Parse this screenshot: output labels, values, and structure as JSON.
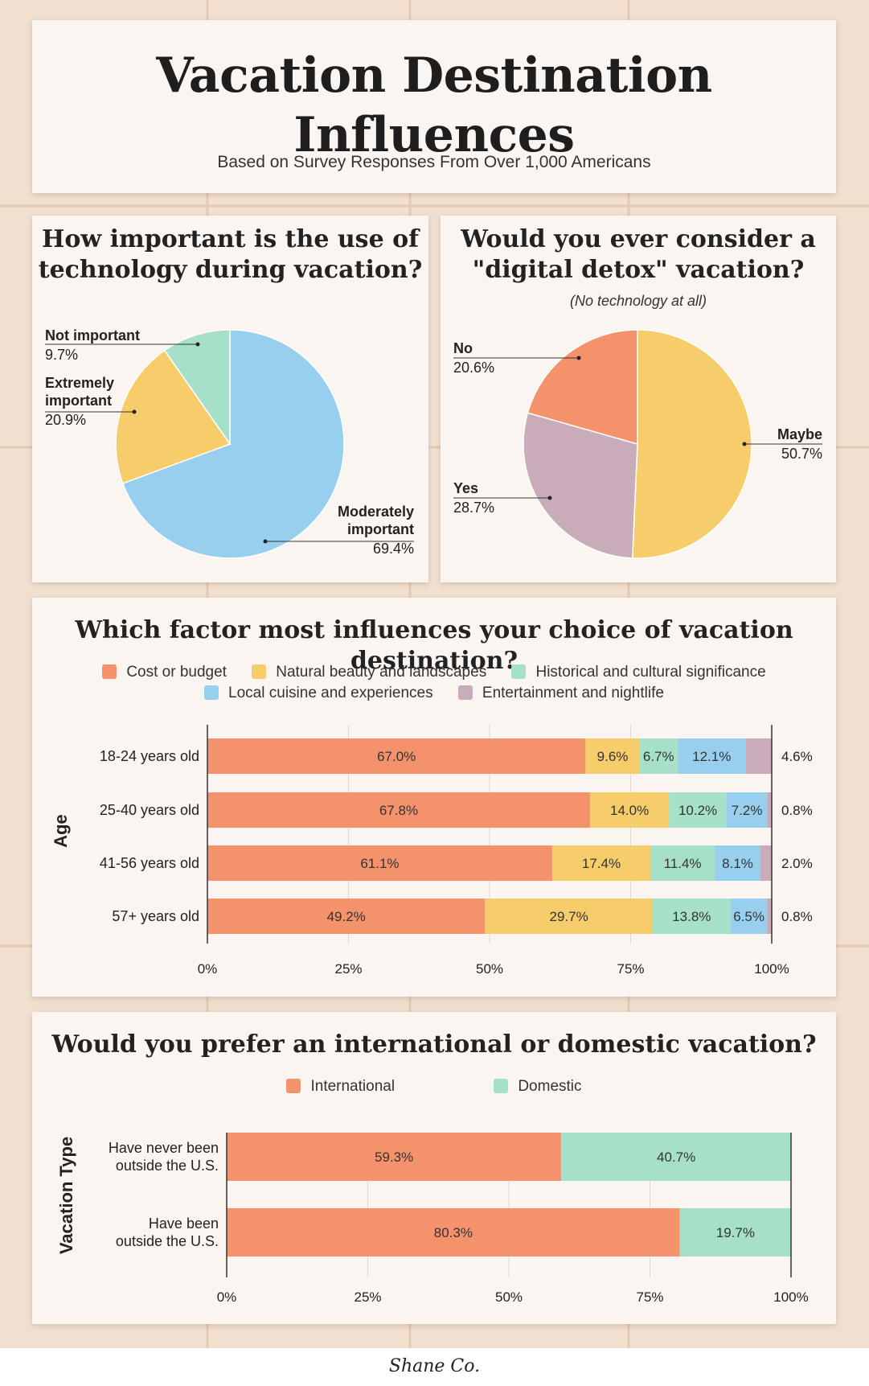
{
  "header": {
    "title_line1": "Vacation Destination",
    "title_line2": "Influences",
    "subtitle": "Based on Survey Responses From Over 1,000 Americans"
  },
  "colors": {
    "orange": "#f4926c",
    "yellow": "#f7cc6b",
    "green": "#a6e0c8",
    "blue": "#98cfef",
    "mauve": "#c9acb9",
    "background": "#f1dfd0",
    "card": "#fbf5f1"
  },
  "tech": {
    "title_line1": "How important is the use of",
    "title_line2": "technology during vacation?"
  },
  "detox": {
    "title_line1": "Would you ever consider a",
    "title_line2": "\"digital detox\" vacation?",
    "subtitle": "(No technology at all)"
  },
  "factor": {
    "title": "Which factor most influences your choice of vacation destination?",
    "legend": [
      "Cost or budget",
      "Natural beauty and landscapes",
      "Historical and cultural significance",
      "Local cuisine and experiences",
      "Entertainment and nightlife"
    ]
  },
  "intl": {
    "title": "Would you prefer an international or domestic vacation?",
    "legend": [
      "International",
      "Domestic"
    ]
  },
  "footer": {
    "brand": "Shane Co."
  },
  "chart_data": [
    {
      "type": "pie",
      "title": "How important is the use of technology during vacation?",
      "slices": [
        {
          "label": "Moderately important",
          "value": 69.4,
          "display": "69.4%"
        },
        {
          "label": "Extremely important",
          "value": 20.9,
          "display": "20.9%"
        },
        {
          "label": "Not important",
          "value": 9.7,
          "display": "9.7%"
        }
      ]
    },
    {
      "type": "pie",
      "title": "Would you ever consider a \"digital detox\" vacation?",
      "subtitle": "(No technology at all)",
      "slices": [
        {
          "label": "Maybe",
          "value": 50.7,
          "display": "50.7%"
        },
        {
          "label": "Yes",
          "value": 28.7,
          "display": "28.7%"
        },
        {
          "label": "No",
          "value": 20.6,
          "display": "20.6%"
        }
      ]
    },
    {
      "type": "bar",
      "orientation": "horizontal",
      "stacked": true,
      "title": "Which factor most influences your choice of vacation destination?",
      "ylabel": "Age",
      "categories": [
        "18-24 years old",
        "25-40 years old",
        "41-56 years old",
        "57+ years old"
      ],
      "series": [
        {
          "name": "Cost or budget",
          "values": [
            67.0,
            67.8,
            61.1,
            49.2
          ],
          "labels": [
            "67.0%",
            "67.8%",
            "61.1%",
            "49.2%"
          ]
        },
        {
          "name": "Natural beauty and landscapes",
          "values": [
            9.6,
            14.0,
            17.4,
            29.7
          ],
          "labels": [
            "9.6%",
            "14.0%",
            "17.4%",
            "29.7%"
          ]
        },
        {
          "name": "Historical and cultural significance",
          "values": [
            6.7,
            10.2,
            11.4,
            13.8
          ],
          "labels": [
            "6.7%",
            "10.2%",
            "11.4%",
            "13.8%"
          ]
        },
        {
          "name": "Local cuisine and experiences",
          "values": [
            12.1,
            7.2,
            8.1,
            6.5
          ],
          "labels": [
            "12.1%",
            "7.2%",
            "8.1%",
            "6.5%"
          ]
        },
        {
          "name": "Entertainment and nightlife",
          "values": [
            4.6,
            0.8,
            2.0,
            0.8
          ],
          "labels": [
            "4.6%",
            "0.8%",
            "2.0%",
            "0.8%"
          ]
        }
      ],
      "xticks": [
        "0%",
        "25%",
        "50%",
        "75%",
        "100%"
      ],
      "xlim": [
        0,
        100
      ]
    },
    {
      "type": "bar",
      "orientation": "horizontal",
      "stacked": true,
      "title": "Would you prefer an international or domestic vacation?",
      "ylabel": "Vacation Type",
      "categories": [
        [
          "Have never been",
          "outside the U.S."
        ],
        [
          "Have been",
          "outside the U.S."
        ]
      ],
      "series": [
        {
          "name": "International",
          "values": [
            59.3,
            80.3
          ],
          "labels": [
            "59.3%",
            "80.3%"
          ]
        },
        {
          "name": "Domestic",
          "values": [
            40.7,
            19.7
          ],
          "labels": [
            "40.7%",
            "19.7%"
          ]
        }
      ],
      "xticks": [
        "0%",
        "25%",
        "50%",
        "75%",
        "100%"
      ],
      "xlim": [
        0,
        100
      ]
    }
  ]
}
